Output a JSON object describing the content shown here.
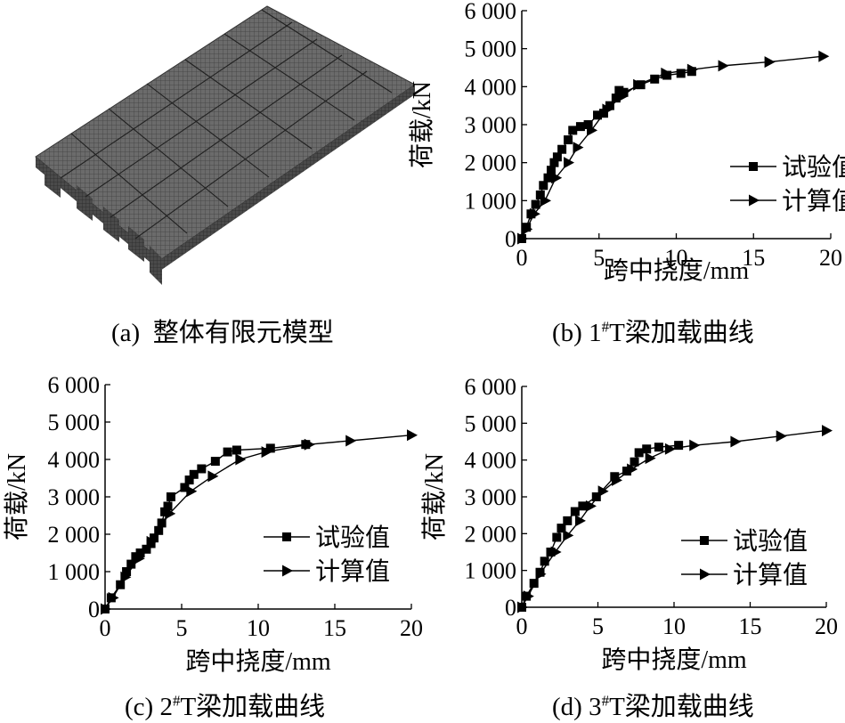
{
  "panels": {
    "a": {
      "label": "(a)",
      "caption": "整体有限元模型"
    },
    "b": {
      "label": "(b)",
      "num": "1",
      "sup": "#",
      "caption": "T梁加载曲线"
    },
    "c": {
      "label": "(c)",
      "num": "2",
      "sup": "#",
      "caption": "T梁加载曲线"
    },
    "d": {
      "label": "(d)",
      "num": "3",
      "sup": "#",
      "caption": "T梁加载曲线"
    }
  },
  "chart_data": [
    {
      "id": "b",
      "type": "line",
      "xlabel": "跨中挠度/mm",
      "ylabel": "荷载/kN",
      "xlim": [
        0,
        20
      ],
      "ylim": [
        0,
        6000
      ],
      "xticks": [
        "0",
        "5",
        "10",
        "15",
        "20"
      ],
      "yticks": [
        "0",
        "1 000",
        "2 000",
        "3 000",
        "4 000",
        "5 000",
        "6 000"
      ],
      "legend_position": "right-middle",
      "series": [
        {
          "name": "试验值",
          "marker": "square",
          "x": [
            0,
            0.3,
            0.6,
            0.9,
            1.2,
            1.4,
            1.7,
            1.9,
            2.1,
            2.3,
            2.6,
            3.0,
            3.3,
            3.8,
            4.3,
            4.9,
            5.3,
            5.7,
            6.1,
            6.3,
            6.6,
            7.7,
            8.6,
            9.4,
            10.3,
            11.0
          ],
          "y": [
            0,
            300,
            650,
            900,
            1150,
            1400,
            1600,
            1800,
            2000,
            2150,
            2350,
            2600,
            2850,
            2950,
            3000,
            3250,
            3300,
            3500,
            3700,
            3900,
            3850,
            4050,
            4200,
            4300,
            4350,
            4400
          ]
        },
        {
          "name": "计算值",
          "marker": "triangle-right",
          "x": [
            0,
            0.3,
            0.8,
            1.5,
            2.2,
            3.0,
            3.6,
            4.5,
            5.5,
            6.5,
            7.5,
            9.3,
            11.0,
            13.0,
            16.0,
            19.5
          ],
          "y": [
            0,
            250,
            650,
            1000,
            1600,
            2000,
            2400,
            2850,
            3400,
            3750,
            4050,
            4350,
            4450,
            4550,
            4650,
            4800
          ]
        }
      ]
    },
    {
      "id": "c",
      "type": "line",
      "xlabel": "跨中挠度/mm",
      "ylabel": "荷载/kN",
      "xlim": [
        0,
        20
      ],
      "ylim": [
        0,
        6000
      ],
      "xticks": [
        "0",
        "5",
        "10",
        "15",
        "20"
      ],
      "yticks": [
        "0",
        "1 000",
        "2 000",
        "3 000",
        "4 000",
        "5 000",
        "6 000"
      ],
      "legend_position": "bottom-right",
      "series": [
        {
          "name": "试验值",
          "marker": "square",
          "x": [
            0,
            0.4,
            1.0,
            1.4,
            1.7,
            2.0,
            2.3,
            2.7,
            3.0,
            3.2,
            3.5,
            3.7,
            3.9,
            4.1,
            4.3,
            5.2,
            5.5,
            5.8,
            6.3,
            7.2,
            8.0,
            8.6,
            10.8,
            13.1
          ],
          "y": [
            0,
            300,
            650,
            1000,
            1200,
            1400,
            1500,
            1600,
            1750,
            1900,
            2100,
            2300,
            2600,
            2750,
            3000,
            3250,
            3450,
            3600,
            3750,
            3950,
            4200,
            4250,
            4300,
            4400
          ]
        },
        {
          "name": "计算值",
          "marker": "triangle-right",
          "x": [
            0,
            0.5,
            1.3,
            2.2,
            3.0,
            4.2,
            5.6,
            7.0,
            8.8,
            10.5,
            13.3,
            16.0,
            20.0
          ],
          "y": [
            0,
            300,
            850,
            1350,
            1800,
            2550,
            3150,
            3550,
            4000,
            4200,
            4400,
            4500,
            4650
          ]
        }
      ]
    },
    {
      "id": "d",
      "type": "line",
      "xlabel": "跨中挠度/mm",
      "ylabel": "荷载/kN",
      "xlim": [
        0,
        20
      ],
      "ylim": [
        0,
        6000
      ],
      "xticks": [
        "0",
        "5",
        "10",
        "15",
        "20"
      ],
      "yticks": [
        "0",
        "1 000",
        "2 000",
        "3 000",
        "4 000",
        "5 000",
        "6 000"
      ],
      "legend_position": "bottom-right",
      "series": [
        {
          "name": "试验值",
          "marker": "square",
          "x": [
            0,
            0.3,
            0.8,
            1.2,
            1.5,
            1.9,
            2.3,
            2.6,
            3.0,
            3.5,
            4.0,
            4.9,
            6.1,
            6.9,
            7.4,
            7.7,
            8.2,
            9.0,
            10.3
          ],
          "y": [
            0,
            300,
            650,
            950,
            1250,
            1500,
            1900,
            2150,
            2350,
            2600,
            2750,
            3000,
            3550,
            3700,
            3950,
            4200,
            4300,
            4350,
            4400
          ]
        },
        {
          "name": "计算值",
          "marker": "triangle-right",
          "x": [
            0,
            0.4,
            1.2,
            2.2,
            3.0,
            3.8,
            4.5,
            5.3,
            6.2,
            7.2,
            8.4,
            9.7,
            11.3,
            14.0,
            17.0,
            20.0
          ],
          "y": [
            0,
            300,
            900,
            1500,
            1950,
            2350,
            2750,
            3150,
            3450,
            3750,
            4050,
            4300,
            4400,
            4500,
            4650,
            4800
          ]
        }
      ]
    }
  ]
}
